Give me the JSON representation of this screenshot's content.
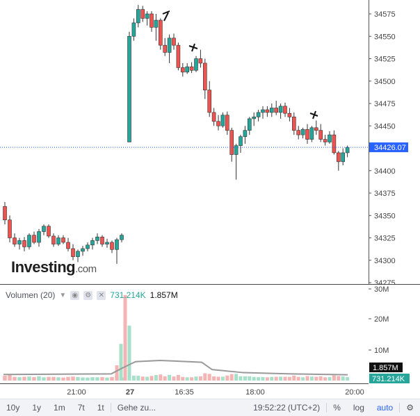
{
  "chart_data": {
    "type": "candlestick",
    "price_axis": {
      "ticks": [
        34275,
        34300,
        34325,
        34350,
        34375,
        34400,
        34425,
        34450,
        34475,
        34500,
        34525,
        34550,
        34575
      ],
      "range": [
        34270,
        34585
      ]
    },
    "last_price": "34426.07",
    "last_price_value": 34426.07,
    "time_labels": [
      "21:00",
      "27",
      "16:35",
      "18:00",
      "20:00"
    ],
    "volume_axis": {
      "ticks": [
        "10M",
        "20M",
        "30M"
      ]
    },
    "volume_badges": [
      "1.857M",
      "731.214K"
    ],
    "candles_session1": [
      [
        34360,
        34365,
        34340,
        34345
      ],
      [
        34345,
        34350,
        34320,
        34325
      ],
      [
        34325,
        34330,
        34315,
        34318
      ],
      [
        34318,
        34325,
        34312,
        34322
      ],
      [
        34322,
        34326,
        34310,
        34315
      ],
      [
        34315,
        34330,
        34312,
        34328
      ],
      [
        34328,
        34332,
        34318,
        34320
      ],
      [
        34320,
        34335,
        34315,
        34332
      ],
      [
        34332,
        34340,
        34328,
        34338
      ],
      [
        34338,
        34340,
        34325,
        34327
      ],
      [
        34327,
        34330,
        34315,
        34318
      ],
      [
        34318,
        34328,
        34316,
        34325
      ],
      [
        34325,
        34328,
        34318,
        34320
      ],
      [
        34320,
        34325,
        34310,
        34313
      ],
      [
        34313,
        34318,
        34300,
        34304
      ],
      [
        34304,
        34312,
        34298,
        34310
      ],
      [
        34310,
        34316,
        34305,
        34313
      ],
      [
        34313,
        34320,
        34310,
        34317
      ],
      [
        34317,
        34325,
        34312,
        34322
      ],
      [
        34322,
        34330,
        34318,
        34326
      ],
      [
        34326,
        34328,
        34315,
        34318
      ],
      [
        34318,
        34324,
        34314,
        34320
      ],
      [
        34320,
        34322,
        34308,
        34312
      ],
      [
        34312,
        34325,
        34296,
        34323
      ],
      [
        34323,
        34330,
        34320,
        34328
      ]
    ],
    "candles_session2": [
      [
        34432,
        34555,
        34432,
        34550
      ],
      [
        34550,
        34570,
        34545,
        34565
      ],
      [
        34565,
        34585,
        34560,
        34580
      ],
      [
        34580,
        34584,
        34566,
        34570
      ],
      [
        34570,
        34578,
        34562,
        34575
      ],
      [
        34575,
        34578,
        34555,
        34560
      ],
      [
        34560,
        34575,
        34545,
        34568
      ],
      [
        34568,
        34570,
        34535,
        34540
      ],
      [
        34540,
        34548,
        34528,
        34532
      ],
      [
        34532,
        34552,
        34520,
        34548
      ],
      [
        34548,
        34553,
        34535,
        34540
      ],
      [
        34540,
        34543,
        34512,
        34515
      ],
      [
        34515,
        34520,
        34505,
        34510
      ],
      [
        34510,
        34520,
        34508,
        34516
      ],
      [
        34516,
        34521,
        34509,
        34512
      ],
      [
        34512,
        34528,
        34510,
        34525
      ],
      [
        34525,
        34535,
        34515,
        34520
      ],
      [
        34520,
        34525,
        34480,
        34490
      ],
      [
        34490,
        34500,
        34460,
        34465
      ],
      [
        34465,
        34470,
        34450,
        34455
      ],
      [
        34455,
        34462,
        34445,
        34450
      ],
      [
        34450,
        34465,
        34448,
        34462
      ],
      [
        34462,
        34466,
        34440,
        34445
      ],
      [
        34445,
        34448,
        34410,
        34418
      ],
      [
        34418,
        34430,
        34390,
        34428
      ],
      [
        34428,
        34440,
        34420,
        34438
      ],
      [
        34438,
        34450,
        34430,
        34445
      ],
      [
        34445,
        34460,
        34440,
        34458
      ],
      [
        34458,
        34465,
        34450,
        34460
      ],
      [
        34460,
        34468,
        34455,
        34465
      ],
      [
        34465,
        34472,
        34458,
        34468
      ],
      [
        34468,
        34472,
        34460,
        34465
      ],
      [
        34465,
        34475,
        34460,
        34470
      ],
      [
        34470,
        34478,
        34462,
        34465
      ],
      [
        34465,
        34475,
        34458,
        34472
      ],
      [
        34472,
        34476,
        34460,
        34464
      ],
      [
        34464,
        34470,
        34455,
        34460
      ],
      [
        34460,
        34465,
        34440,
        34445
      ],
      [
        34445,
        34450,
        34435,
        34440
      ],
      [
        34440,
        34448,
        34436,
        34446
      ],
      [
        34446,
        34452,
        34430,
        34435
      ],
      [
        34435,
        34450,
        34432,
        34448
      ],
      [
        34448,
        34456,
        34440,
        34445
      ],
      [
        34445,
        34452,
        34432,
        34435
      ],
      [
        34435,
        34440,
        34428,
        34432
      ],
      [
        34432,
        34444,
        34430,
        34440
      ],
      [
        34440,
        34445,
        34418,
        34420
      ],
      [
        34420,
        34422,
        34400,
        34410
      ],
      [
        34410,
        34425,
        34406,
        34420
      ],
      [
        34420,
        34428,
        34415,
        34426
      ]
    ],
    "volume_line_level_millions": 2.0
  },
  "volume_legend": {
    "title": "Volumen (20)",
    "value1": "731.214K",
    "value2": "1.857M"
  },
  "logo": {
    "main": "Investing",
    "suffix": ".com"
  },
  "toolbar": {
    "ranges": [
      "10y",
      "1y",
      "1m",
      "7t",
      "1t"
    ],
    "goto": "Gehe zu...",
    "time": "19:52:22",
    "timezone": "(UTC+2)",
    "percent": "%",
    "log": "log",
    "auto": "auto"
  },
  "colors": {
    "up": "#26a69a",
    "down": "#ef5350",
    "price_line": "#2962ff",
    "vol_up": "#a7e0c9",
    "vol_down": "#f5b4b4"
  }
}
